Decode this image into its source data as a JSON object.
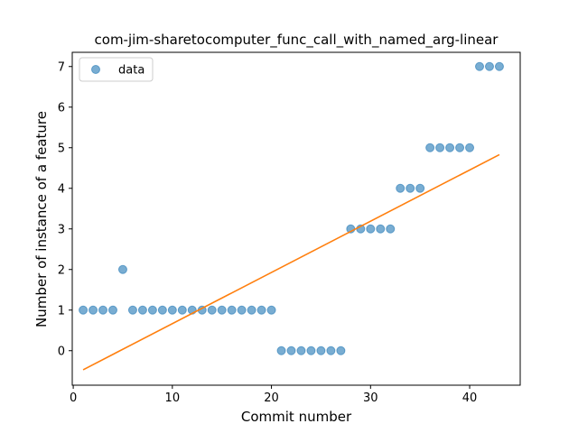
{
  "chart_data": {
    "type": "scatter",
    "title": "com-jim-sharetocomputer_func_call_with_named_arg-linear",
    "xlabel": "Commit number",
    "ylabel": "Number of instance of a feature",
    "xlim": [
      -0.1,
      45.1
    ],
    "ylim": [
      -0.85,
      7.35
    ],
    "xticks": [
      0,
      10,
      20,
      30,
      40
    ],
    "yticks": [
      0,
      1,
      2,
      3,
      4,
      5,
      6,
      7
    ],
    "legend": {
      "label": "data",
      "placement": "top-left"
    },
    "colors": {
      "points": "#1f77b4",
      "fit": "#ff7f0e"
    },
    "series": [
      {
        "name": "data",
        "kind": "scatter",
        "x": [
          1,
          2,
          3,
          4,
          5,
          6,
          7,
          8,
          9,
          10,
          11,
          12,
          13,
          14,
          15,
          16,
          17,
          18,
          19,
          20,
          21,
          22,
          23,
          24,
          25,
          26,
          27,
          28,
          29,
          30,
          31,
          32,
          33,
          34,
          35,
          36,
          37,
          38,
          39,
          40,
          41,
          42,
          43
        ],
        "y": [
          1,
          1,
          1,
          1,
          2,
          1,
          1,
          1,
          1,
          1,
          1,
          1,
          1,
          1,
          1,
          1,
          1,
          1,
          1,
          1,
          0,
          0,
          0,
          0,
          0,
          0,
          0,
          3,
          3,
          3,
          3,
          3,
          4,
          4,
          4,
          5,
          5,
          5,
          5,
          5,
          7,
          7,
          7
        ]
      },
      {
        "name": "linear fit",
        "kind": "line",
        "x": [
          1,
          43
        ],
        "y": [
          -0.47,
          4.83
        ]
      }
    ]
  }
}
